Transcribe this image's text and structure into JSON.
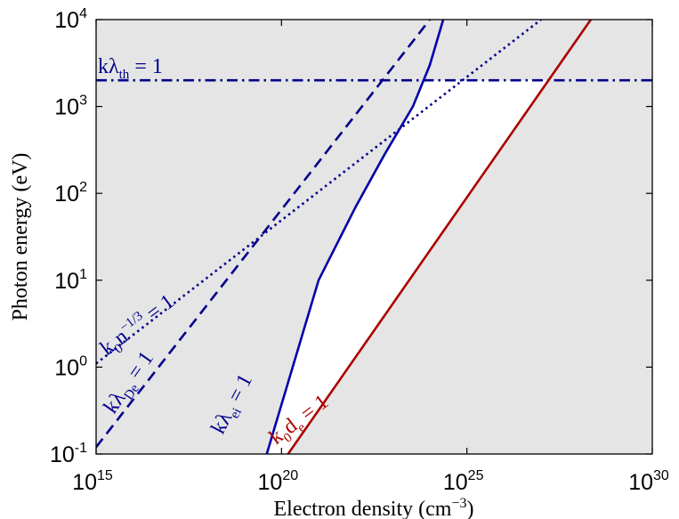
{
  "chart_data": {
    "type": "line",
    "x_scale": "log",
    "y_scale": "log",
    "xlim": [
      1000000000000000.0,
      1e+30
    ],
    "ylim": [
      0.1,
      10000
    ],
    "xlabel": {
      "text": "Electron density (cm",
      "sup": "−3",
      "tail": ")"
    },
    "ylabel": "Photon energy (eV)",
    "x_ticks": [
      {
        "base": "10",
        "exp": "15",
        "value": 1000000000000000.0
      },
      {
        "base": "10",
        "exp": "20",
        "value": 1e+20
      },
      {
        "base": "10",
        "exp": "25",
        "value": 1e+25
      },
      {
        "base": "10",
        "exp": "30",
        "value": 1e+30
      }
    ],
    "y_ticks": [
      {
        "base": "10",
        "exp": "-1",
        "value": 0.1
      },
      {
        "base": "10",
        "exp": "0",
        "value": 1
      },
      {
        "base": "10",
        "exp": "1",
        "value": 10
      },
      {
        "base": "10",
        "exp": "2",
        "value": 100
      },
      {
        "base": "10",
        "exp": "3",
        "value": 1000
      },
      {
        "base": "10",
        "exp": "4",
        "value": 10000
      }
    ],
    "background_fill": "#e5e5e5",
    "unshaded_region_fill": "#ffffff",
    "series": [
      {
        "id": "k-lambda-th",
        "style": "dashdot",
        "color": "#00008b",
        "points": [
          [
            1000000000000000.0,
            2000
          ],
          [
            1e+30,
            2000
          ]
        ]
      },
      {
        "id": "k0-n-third",
        "style": "dotted",
        "color": "#00008b",
        "points": [
          [
            1000000000000000.0,
            1.1
          ],
          [
            1e+27,
            10000
          ]
        ]
      },
      {
        "id": "k-lambda-de",
        "style": "dashed",
        "color": "#00008b",
        "points": [
          [
            1000000000000000.0,
            0.12
          ],
          [
            1e+24,
            10000
          ]
        ]
      },
      {
        "id": "k-lambda-ei",
        "style": "solid",
        "color": "#0000aa",
        "points": [
          [
            4e+19,
            0.1
          ],
          [
            1e+21,
            10
          ],
          [
            1e+22,
            70
          ],
          [
            6e+22,
            280
          ],
          [
            3.5e+23,
            1000
          ],
          [
            1e+24,
            3000
          ],
          [
            2.3e+24,
            10000
          ]
        ]
      },
      {
        "id": "k0-de",
        "style": "solid",
        "color": "#aa0000",
        "points": [
          [
            1.5e+20,
            0.1
          ],
          [
            2.2e+28,
            10000
          ]
        ]
      }
    ],
    "annotations": [
      {
        "id": "label-k-lambda-th",
        "color": "#00008b",
        "parts": [
          {
            "t": "kλ"
          },
          {
            "t": "th",
            "sub": true
          },
          {
            "t": " = 1"
          }
        ]
      },
      {
        "id": "label-k0-n-third",
        "color": "#00008b",
        "parts": [
          {
            "t": "k"
          },
          {
            "t": "0",
            "sub": true
          },
          {
            "t": "n"
          },
          {
            "t": "−1/3",
            "sup": true
          },
          {
            "t": " = 1"
          }
        ]
      },
      {
        "id": "label-k-lambda-de",
        "color": "#00008b",
        "parts": [
          {
            "t": "kλ"
          },
          {
            "t": "De",
            "sub": true
          },
          {
            "t": " = 1"
          }
        ]
      },
      {
        "id": "label-k-lambda-ei",
        "color": "#00008b",
        "parts": [
          {
            "t": "kλ"
          },
          {
            "t": "ei",
            "sub": true
          },
          {
            "t": " = 1"
          }
        ]
      },
      {
        "id": "label-k0-de",
        "color": "#aa0000",
        "parts": [
          {
            "t": "k"
          },
          {
            "t": "0",
            "sub": true
          },
          {
            "t": "d"
          },
          {
            "t": "e",
            "sub": true
          },
          {
            "t": " = 1"
          }
        ]
      }
    ]
  }
}
